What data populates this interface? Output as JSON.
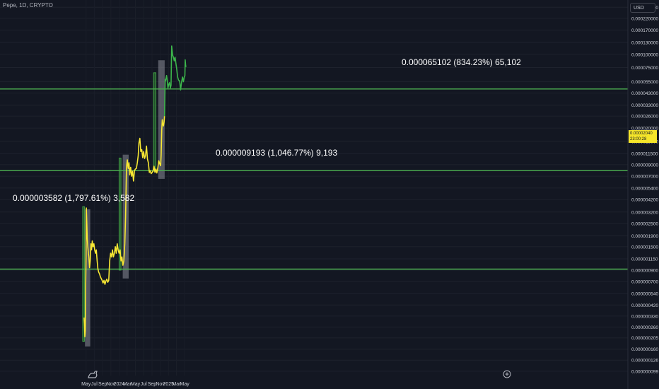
{
  "header": {
    "symbol": "Pepe, 1D, CRYPTO",
    "currency": "USD"
  },
  "last_price": {
    "value": "0.00002040",
    "countdown": "23:00:28"
  },
  "colors": {
    "background": "#131722",
    "price_line_pre": "#f7e733",
    "price_line_post": "#3cb44b",
    "level_line": "#4caf50",
    "green_box": "#2e7d32",
    "grey_box": "#9598a1",
    "axis_text": "#d1d4dc"
  },
  "chart_data": {
    "type": "line",
    "title": "",
    "yscale": "log",
    "ylim": [
      9e-08,
      0.00029
    ],
    "y_ticks": [
      "0.000280000",
      "0.000220000",
      "0.000170000",
      "0.000130000",
      "0.000100000",
      "0.000075000",
      "0.000055000",
      "0.000043000",
      "0.000033000",
      "0.000026000",
      "0.000020000",
      "0.000015000",
      "0.000011500",
      "0.000009000",
      "0.000007000",
      "0.000005400",
      "0.000004200",
      "0.000003200",
      "0.000002500",
      "0.000001900",
      "0.000001500",
      "0.000001150",
      "0.000000900",
      "0.000000700",
      "0.000000540",
      "0.000000420",
      "0.000000330",
      "0.000000260",
      "0.000000205",
      "0.000000160",
      "0.000000126",
      "0.000000099"
    ],
    "x_ticks": [
      "May",
      "Jul",
      "Sep",
      "Nov",
      "2024",
      "Mar",
      "May",
      "Jul",
      "Sep",
      "Nov",
      "2025",
      "Mar",
      "May"
    ],
    "horizontal_levels": [
      9.2e-07,
      7.9e-06,
      4.7e-05
    ],
    "annotations": [
      {
        "text": "0.000003582 (1,797.61%) 3,582"
      },
      {
        "text": "0.000009193 (1,046.77%) 9,193"
      },
      {
        "text": "0.000065102 (834.23%) 65,102"
      }
    ],
    "series": [
      {
        "x": [
          "2023-04-16",
          "2023-04-19",
          "2023-04-22",
          "2023-04-25",
          "2023-04-28",
          "2023-05-01",
          "2023-05-03",
          "2023-05-06",
          "2023-05-10",
          "2023-05-14",
          "2023-05-18",
          "2023-05-22",
          "2023-05-27",
          "2023-06-01",
          "2023-06-06",
          "2023-06-11",
          "2023-06-16",
          "2023-06-22",
          "2023-06-28",
          "2023-07-04",
          "2023-07-10",
          "2023-07-16",
          "2023-07-22",
          "2023-07-28",
          "2023-08-03",
          "2023-08-09",
          "2023-08-15",
          "2023-08-21",
          "2023-08-28",
          "2023-09-04",
          "2023-09-11",
          "2023-09-18",
          "2023-09-25",
          "2023-10-02",
          "2023-10-09",
          "2023-10-16",
          "2023-10-23",
          "2023-10-30",
          "2023-11-06",
          "2023-11-13",
          "2023-11-20",
          "2023-11-27",
          "2023-12-04",
          "2023-12-11",
          "2023-12-18",
          "2023-12-25",
          "2024-01-01",
          "2024-01-08",
          "2024-01-15",
          "2024-01-22",
          "2024-01-29",
          "2024-02-05",
          "2024-02-12",
          "2024-02-18",
          "2024-02-22",
          "2024-02-25",
          "2024-02-28",
          "2024-03-02",
          "2024-03-05",
          "2024-03-09",
          "2024-03-14",
          "2024-03-20",
          "2024-03-27",
          "2024-04-03",
          "2024-04-10",
          "2024-04-17",
          "2024-04-24",
          "2024-05-01",
          "2024-05-08",
          "2024-05-15",
          "2024-05-22",
          "2024-05-27",
          "2024-06-03",
          "2024-06-10",
          "2024-06-17",
          "2024-06-24",
          "2024-07-01",
          "2024-07-08",
          "2024-07-15",
          "2024-07-22",
          "2024-07-29",
          "2024-08-05",
          "2024-08-12",
          "2024-08-19",
          "2024-08-26",
          "2024-09-02",
          "2024-09-09",
          "2024-09-16",
          "2024-09-23",
          "2024-09-30",
          "2024-10-07",
          "2024-10-14",
          "2024-10-21",
          "2024-10-28",
          "2024-11-04",
          "2024-11-08",
          "2024-11-12",
          "2024-11-16",
          "2024-11-20",
          "2024-11-25",
          "2024-11-30",
          "2024-12-03"
        ],
        "values": [
          3.2e-07,
          2.8e-07,
          2.1e-07,
          2.4e-07,
          6e-07,
          1.2e-06,
          3.5e-06,
          2.6e-06,
          1.8e-06,
          1.5e-06,
          1.3e-06,
          1.2e-06,
          9.5e-07,
          1.1e-06,
          1.6e-06,
          1.4e-06,
          1.7e-06,
          1.5e-06,
          1.6e-06,
          1.4e-06,
          1.3e-06,
          1.4e-06,
          1.1e-06,
          9.2e-07,
          8.6e-07,
          8.3e-07,
          7.8e-07,
          7.5e-07,
          7.2e-07,
          6.8e-07,
          7.2e-07,
          6.6e-07,
          7.1e-07,
          7.4e-07,
          6.9e-07,
          7.2e-07,
          1.1e-06,
          1.3e-06,
          1.2e-06,
          1.4e-06,
          1.2e-06,
          1.3e-06,
          1.5e-06,
          1.3e-06,
          1.6e-06,
          1.4e-06,
          1.3e-06,
          1.4e-06,
          1.1e-06,
          1.2e-06,
          1e-06,
          1.1e-06,
          1.6e-06,
          2.9e-06,
          5.5e-06,
          8.5e-06,
          9.3e-06,
          1e-05,
          9e-06,
          8.3e-06,
          9.4e-06,
          7.2e-06,
          8.5e-06,
          7e-06,
          7.8e-06,
          6.3e-06,
          7.9e-06,
          8.2e-06,
          8.3e-06,
          9.4e-06,
          1.1e-05,
          1.45e-05,
          1.6e-05,
          1.2e-05,
          1.25e-05,
          1.05e-05,
          1.2e-05,
          1.03e-05,
          1.1e-05,
          1.35e-05,
          1.02e-05,
          9.4e-06,
          7.6e-06,
          7.9e-06,
          7.4e-06,
          7.6e-06,
          7.9e-06,
          8.7e-06,
          7.6e-06,
          8.2e-06,
          7.5e-06,
          8.4e-06,
          9.8e-06,
          9.2e-06,
          8.8e-06,
          1.12e-05,
          1.9e-05,
          2.4e-05,
          2.2e-05,
          2.1e-05,
          2.3e-05,
          2.6e-05
        ]
      },
      {
        "x": [
          "2024-12-03",
          "2024-12-06",
          "2024-12-08",
          "2024-12-11",
          "2024-12-14",
          "2024-12-18",
          "2024-12-23",
          "2024-12-28",
          "2025-01-03",
          "2025-01-09",
          "2025-01-15",
          "2025-01-20",
          "2025-01-25",
          "2025-02-01",
          "2025-02-07",
          "2025-02-13",
          "2025-02-19",
          "2025-02-25",
          "2025-03-03",
          "2025-03-10",
          "2025-03-17",
          "2025-03-25",
          "2025-04-01",
          "2025-04-08",
          "2025-04-15",
          "2025-04-22",
          "2025-04-28",
          "2025-05-03",
          "2025-05-05",
          "2025-05-08",
          "2025-05-11"
        ],
        "values": [
          2.6e-05,
          4.5e-05,
          5.8e-05,
          5.6e-05,
          5.9e-05,
          6.3e-05,
          5.7e-05,
          4.8e-05,
          5.2e-05,
          5.4e-05,
          4.8e-05,
          5.1e-05,
          0.00012,
          9.8e-05,
          9.4e-05,
          8.7e-05,
          9.4e-05,
          8.3e-05,
          7.3e-05,
          6.1e-05,
          5.7e-05,
          5.6e-05,
          4.6e-05,
          5.4e-05,
          6.1e-05,
          5.5e-05,
          6.1e-05,
          6.3e-05,
          8.9e-05,
          7.9e-05,
          7.6e-05
        ]
      }
    ]
  }
}
